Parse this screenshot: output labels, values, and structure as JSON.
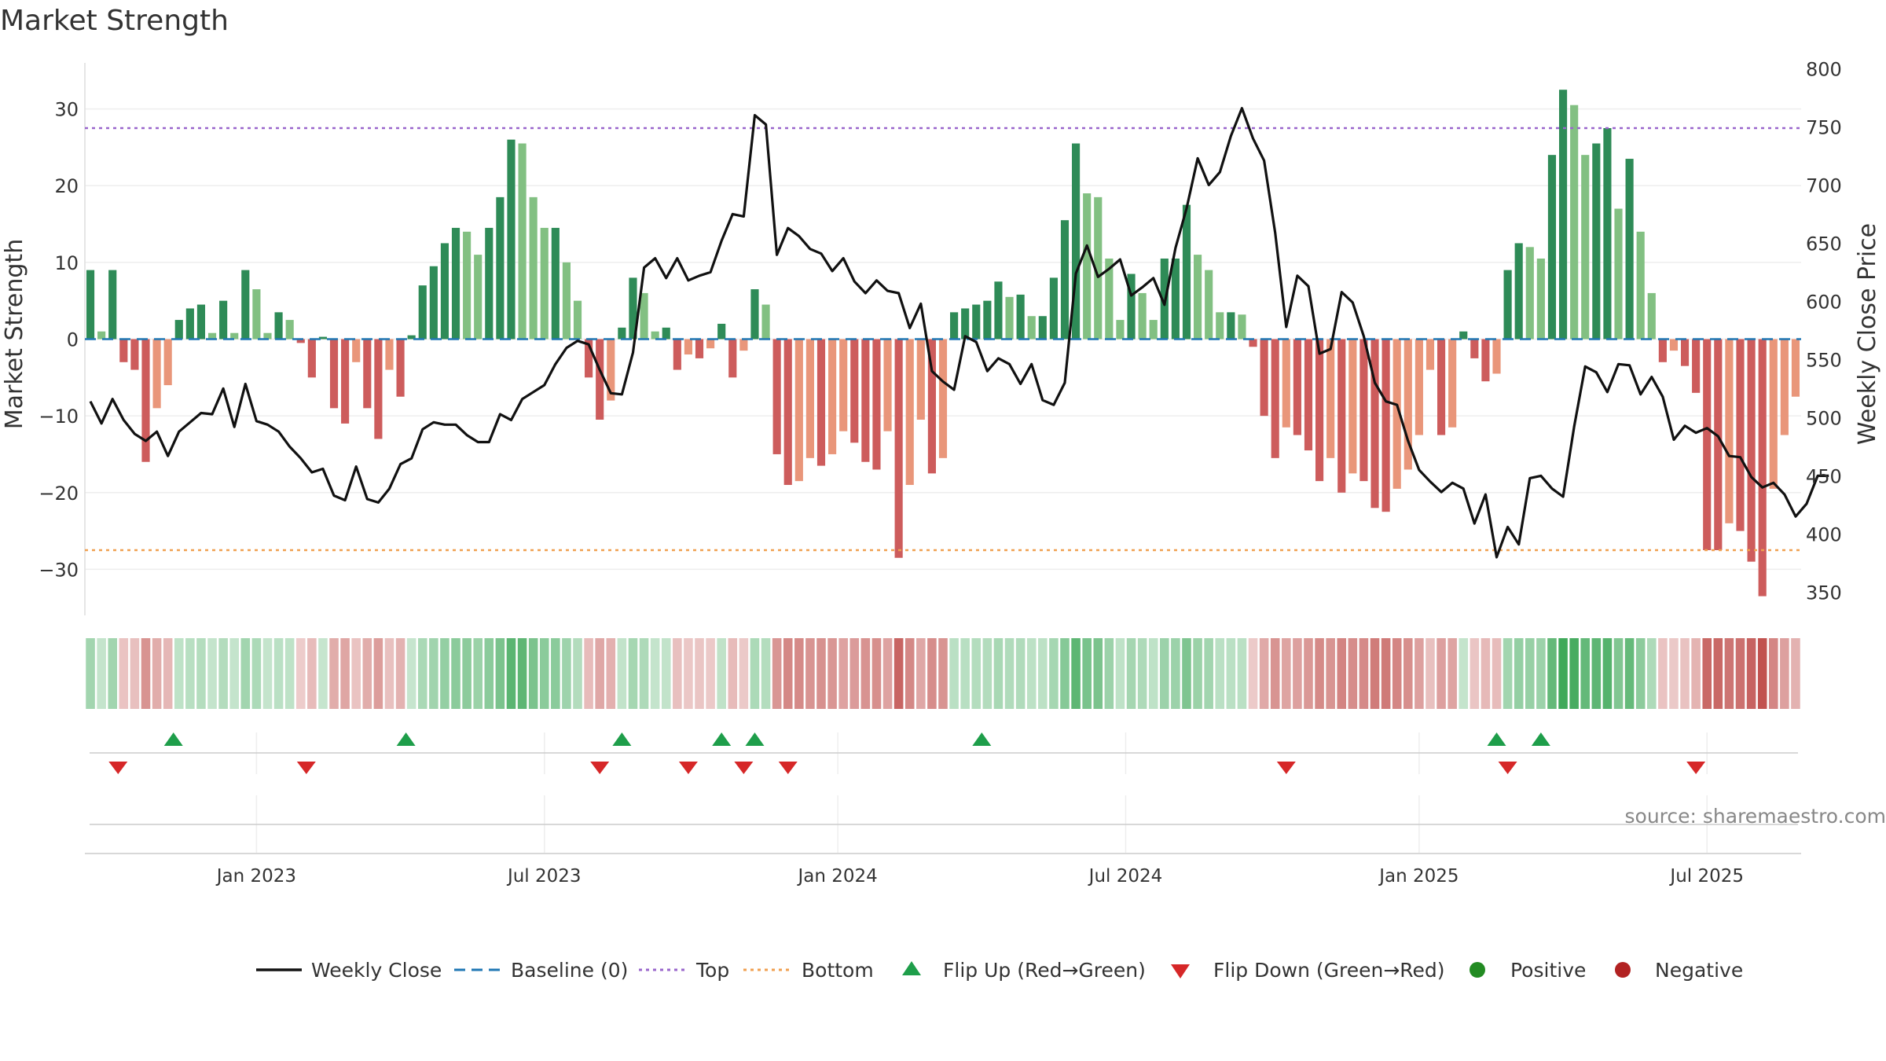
{
  "chart_data": {
    "type": "bar",
    "title": "Market Strength",
    "ylabel": "Market Strength",
    "y2label": "Weekly Close Price",
    "ylim": [
      -36,
      36
    ],
    "y2lim": [
      330,
      805
    ],
    "yticks": [
      30,
      20,
      10,
      0,
      -10,
      -20,
      -30
    ],
    "y2ticks": [
      800,
      750,
      700,
      650,
      600,
      550,
      500,
      450,
      400,
      350
    ],
    "top_line": 27.5,
    "bottom_line": -27.5,
    "xtick_labels": [
      "Jan 2023",
      "Jul 2023",
      "Jan 2024",
      "Jul 2024",
      "Jan 2025",
      "Jul 2025"
    ],
    "xtick_index": [
      15,
      41,
      67.5,
      93.5,
      120,
      146
    ],
    "strength": [
      9,
      1,
      9,
      -3,
      -4,
      -16,
      -9,
      -6,
      2.5,
      4,
      4.5,
      0.8,
      5,
      0.8,
      9,
      6.5,
      0.8,
      3.5,
      2.5,
      -0.5,
      -5,
      0.3,
      -9,
      -11,
      -3,
      -9,
      -13,
      -4,
      -7.5,
      0.5,
      7,
      9.5,
      12.5,
      14.5,
      14,
      11,
      14.5,
      18.5,
      26,
      25.5,
      18.5,
      14.5,
      14.5,
      10,
      5,
      -5,
      -10.5,
      -8,
      1.5,
      8,
      6,
      1,
      1.5,
      -4,
      -2,
      -2.5,
      -1.2,
      2,
      -5,
      -1.5,
      6.5,
      4.5,
      -15,
      -19,
      -18.5,
      -15.5,
      -16.5,
      -15,
      -12,
      -13.5,
      -16,
      -17,
      -12,
      -28.5,
      -19,
      -10.5,
      -17.5,
      -15.5,
      3.5,
      4,
      4.5,
      5,
      7.5,
      5.5,
      5.8,
      3,
      3,
      8,
      15.5,
      25.5,
      19,
      18.5,
      10.5,
      2.5,
      8.5,
      6,
      2.5,
      10.5,
      10.5,
      17.5,
      11,
      9,
      3.5,
      3.5,
      3.2,
      -1,
      -10,
      -15.5,
      -11.5,
      -12.5,
      -14.5,
      -18.5,
      -15.5,
      -20,
      -17.5,
      -18.5,
      -22,
      -22.5,
      -19.5,
      -17,
      -12.5,
      -4,
      -12.5,
      -11.5,
      1,
      -2.5,
      -5.5,
      -4.5,
      9,
      12.5,
      12,
      10.5,
      24,
      32.5,
      30.5,
      24,
      25.5,
      27.5,
      17,
      23.5,
      14,
      6,
      -3,
      -1.5,
      -3.5,
      -7,
      -27.5,
      -27.5,
      -24,
      -25,
      -29,
      -33.5,
      -19.5,
      -12.5,
      -7.5
    ],
    "price": [
      514,
      495,
      516,
      498,
      486,
      480,
      488,
      467,
      488,
      496,
      504,
      503,
      525,
      492,
      529,
      497,
      494,
      488,
      475,
      465,
      453,
      456,
      433,
      429,
      458,
      430,
      427,
      439,
      460,
      465,
      490,
      496,
      494,
      494,
      485,
      479,
      479,
      503,
      498,
      516,
      522,
      528,
      546,
      560,
      566,
      563,
      541,
      521,
      520,
      556,
      629,
      637,
      620,
      637,
      618,
      622,
      625,
      652,
      675,
      673,
      760,
      752,
      640,
      663,
      656,
      645,
      641,
      626,
      637,
      617,
      607,
      618,
      609,
      607,
      577,
      598,
      540,
      531,
      524,
      570,
      565,
      540,
      551,
      546,
      529,
      546,
      515,
      511,
      530,
      624,
      648,
      621,
      628,
      636,
      605,
      612,
      620,
      597,
      646,
      680,
      723,
      700,
      711,
      742,
      766,
      740,
      721,
      659,
      578,
      622,
      613,
      555,
      559,
      608,
      599,
      570,
      530,
      514,
      511,
      480,
      455,
      445,
      436,
      444,
      439,
      409,
      434,
      380,
      406,
      391,
      448,
      450,
      439,
      432,
      492,
      544,
      539,
      522,
      546,
      545,
      520,
      535,
      518,
      481,
      493,
      487,
      491,
      484,
      467,
      466,
      449,
      440,
      444,
      434,
      415,
      426,
      450,
      450
    ],
    "band_title": "",
    "flip_up_index": [
      7.5,
      28.5,
      48,
      57,
      60,
      80.5,
      127,
      131
    ],
    "flip_down_index": [
      2.5,
      19.5,
      46,
      54,
      59,
      63,
      108,
      128,
      145
    ],
    "source_text": "source: sharemaestro.com",
    "legend": [
      "Weekly Close",
      "Baseline (0)",
      "Top",
      "Bottom",
      "Flip Up (Red→Green)",
      "Flip Down (Green→Red)",
      "Positive",
      "Negative"
    ]
  },
  "colors": {
    "pos_strong": "#2e8b57",
    "pos_light": "#82c082",
    "neg_strong": "#cd5c5c",
    "neg_light": "#e9967a",
    "price_line": "#111111",
    "baseline": "#1f77b4",
    "top": "#9966cc",
    "bottom": "#f0a050",
    "flip_up": "#1e9e4a",
    "flip_down": "#d62728",
    "positive_marker": "#228b22",
    "negative_marker": "#b22222"
  }
}
